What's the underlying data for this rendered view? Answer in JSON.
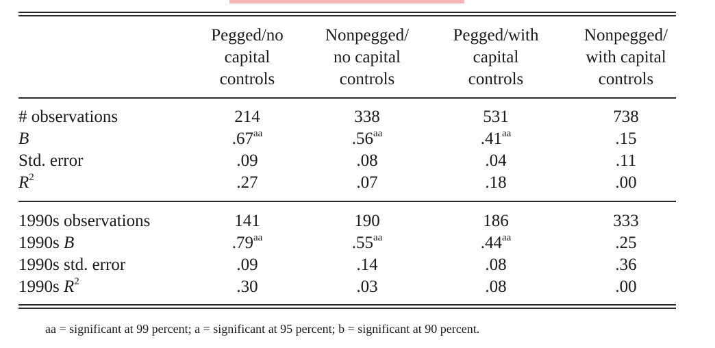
{
  "table": {
    "columns": [
      {
        "line1": "Pegged/no",
        "line2": "capital",
        "line3": "controls"
      },
      {
        "line1": "Nonpegged/",
        "line2": "no capital",
        "line3": "controls"
      },
      {
        "line1": "Pegged/with",
        "line2": "capital",
        "line3": "controls"
      },
      {
        "line1": "Nonpegged/",
        "line2": "with capital",
        "line3": "controls"
      }
    ],
    "sections": [
      {
        "rows": [
          {
            "label_pre": "# observations",
            "label_var": "",
            "label_sup": "",
            "cells": [
              {
                "value": "214",
                "sup": ""
              },
              {
                "value": "338",
                "sup": ""
              },
              {
                "value": "531",
                "sup": ""
              },
              {
                "value": "738",
                "sup": ""
              }
            ]
          },
          {
            "label_pre": "",
            "label_var": "B",
            "label_sup": "",
            "cells": [
              {
                "value": ".67",
                "sup": "aa"
              },
              {
                "value": ".56",
                "sup": "aa"
              },
              {
                "value": ".41",
                "sup": "aa"
              },
              {
                "value": ".15",
                "sup": ""
              }
            ]
          },
          {
            "label_pre": "Std. error",
            "label_var": "",
            "label_sup": "",
            "cells": [
              {
                "value": ".09",
                "sup": ""
              },
              {
                "value": ".08",
                "sup": ""
              },
              {
                "value": ".04",
                "sup": ""
              },
              {
                "value": ".11",
                "sup": ""
              }
            ]
          },
          {
            "label_pre": "",
            "label_var": "R",
            "label_sup": "2",
            "cells": [
              {
                "value": ".27",
                "sup": ""
              },
              {
                "value": ".07",
                "sup": ""
              },
              {
                "value": ".18",
                "sup": ""
              },
              {
                "value": ".00",
                "sup": ""
              }
            ]
          }
        ]
      },
      {
        "rows": [
          {
            "label_pre": "1990s observations",
            "label_var": "",
            "label_sup": "",
            "cells": [
              {
                "value": "141",
                "sup": ""
              },
              {
                "value": "190",
                "sup": ""
              },
              {
                "value": "186",
                "sup": ""
              },
              {
                "value": "333",
                "sup": ""
              }
            ]
          },
          {
            "label_pre": "1990s ",
            "label_var": "B",
            "label_sup": "",
            "cells": [
              {
                "value": ".79",
                "sup": "aa"
              },
              {
                "value": ".55",
                "sup": "aa"
              },
              {
                "value": ".44",
                "sup": "aa"
              },
              {
                "value": ".25",
                "sup": ""
              }
            ]
          },
          {
            "label_pre": "1990s std. error",
            "label_var": "",
            "label_sup": "",
            "cells": [
              {
                "value": ".09",
                "sup": ""
              },
              {
                "value": ".14",
                "sup": ""
              },
              {
                "value": ".08",
                "sup": ""
              },
              {
                "value": ".36",
                "sup": ""
              }
            ]
          },
          {
            "label_pre": "1990s ",
            "label_var": "R",
            "label_sup": "2",
            "cells": [
              {
                "value": ".30",
                "sup": ""
              },
              {
                "value": ".03",
                "sup": ""
              },
              {
                "value": ".08",
                "sup": ""
              },
              {
                "value": ".00",
                "sup": ""
              }
            ]
          }
        ]
      }
    ]
  },
  "footnote": "aa = significant at 99 percent; a = significant at 95 percent; b = significant at 90 percent.",
  "colors": {
    "highlight": "#f6b3b3",
    "rule": "#2a2a2a",
    "text": "#1a1a1a"
  }
}
